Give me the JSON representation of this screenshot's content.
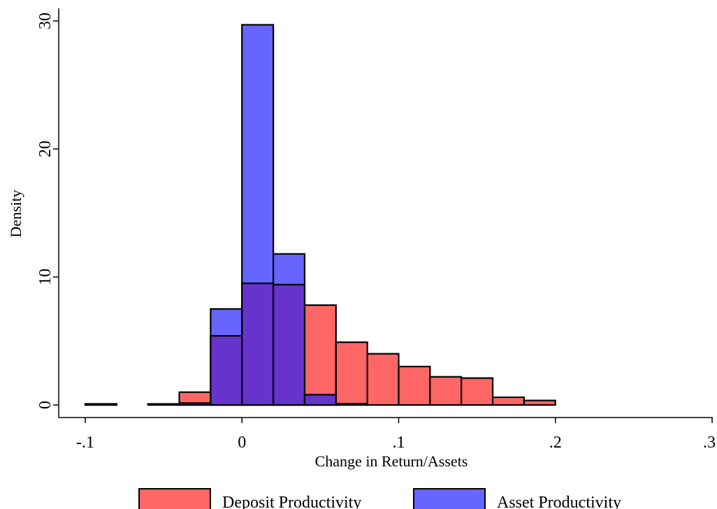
{
  "chart_data": {
    "type": "histogram",
    "xlabel": "Change in Return/Assets",
    "ylabel": "Density",
    "xlim": [
      -0.1,
      0.3
    ],
    "ylim": [
      0,
      30
    ],
    "x_ticks": [
      -0.1,
      0,
      0.1,
      0.2,
      0.3
    ],
    "x_tick_labels": [
      "-.1",
      "0",
      ".1",
      ".2",
      ".3"
    ],
    "y_ticks": [
      0,
      10,
      20,
      30
    ],
    "y_tick_labels": [
      "0",
      "10",
      "20",
      "30"
    ],
    "bin_width": 0.02,
    "grid": false,
    "legend_position": "bottom",
    "overlap_color": "#6633cc",
    "series": [
      {
        "name": "Deposit Productivity",
        "color": "#ff6666",
        "bins": [
          {
            "start": -0.1,
            "value": 0.05
          },
          {
            "start": -0.06,
            "value": 0.05
          },
          {
            "start": -0.04,
            "value": 1.0
          },
          {
            "start": -0.02,
            "value": 5.4
          },
          {
            "start": 0.0,
            "value": 9.5
          },
          {
            "start": 0.02,
            "value": 9.4
          },
          {
            "start": 0.04,
            "value": 7.8
          },
          {
            "start": 0.06,
            "value": 4.9
          },
          {
            "start": 0.08,
            "value": 4.0
          },
          {
            "start": 0.1,
            "value": 3.0
          },
          {
            "start": 0.12,
            "value": 2.2
          },
          {
            "start": 0.14,
            "value": 2.1
          },
          {
            "start": 0.16,
            "value": 0.6
          },
          {
            "start": 0.18,
            "value": 0.35
          }
        ]
      },
      {
        "name": "Asset Productivity",
        "color": "#6666ff",
        "bins": [
          {
            "start": -0.1,
            "value": 0.05
          },
          {
            "start": -0.04,
            "value": 0.15
          },
          {
            "start": -0.02,
            "value": 7.5
          },
          {
            "start": 0.0,
            "value": 29.7
          },
          {
            "start": 0.02,
            "value": 11.8
          },
          {
            "start": 0.04,
            "value": 0.8
          },
          {
            "start": 0.06,
            "value": 0.1
          }
        ]
      }
    ]
  }
}
